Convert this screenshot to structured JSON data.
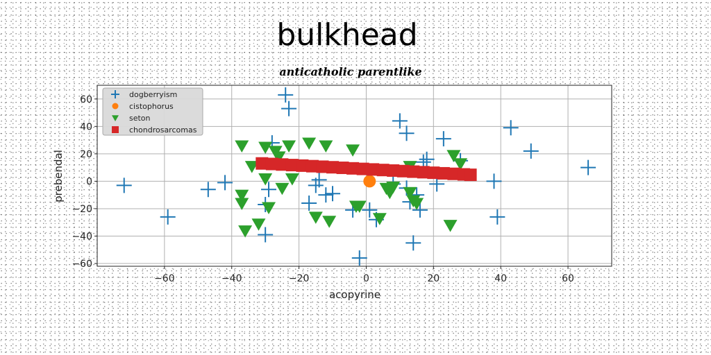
{
  "chart_data": {
    "type": "scatter",
    "title": "bulkhead",
    "subtitle": "anticatholic parentlike",
    "xlabel": "acopyrine",
    "ylabel": "prebendal",
    "xlim": [
      -80,
      73
    ],
    "ylim": [
      -62,
      70
    ],
    "xticks": [
      -60,
      -40,
      -20,
      0,
      20,
      40,
      60
    ],
    "yticks": [
      -60,
      -40,
      -20,
      0,
      20,
      40,
      60
    ],
    "grid": true,
    "legend_position": "top-left",
    "series": [
      {
        "name": "dogberryism",
        "marker": "plus",
        "color": "#1f77b4",
        "points": [
          [
            -72,
            -3
          ],
          [
            -59,
            -26
          ],
          [
            -47,
            -6
          ],
          [
            -42,
            -1
          ],
          [
            -30,
            -17
          ],
          [
            -30,
            -39
          ],
          [
            -29,
            -6
          ],
          [
            -28,
            28
          ],
          [
            -24,
            63
          ],
          [
            -23,
            53
          ],
          [
            -17,
            -16
          ],
          [
            -15,
            -3
          ],
          [
            -14,
            1
          ],
          [
            -12,
            -10
          ],
          [
            -10,
            -9
          ],
          [
            -4,
            -21
          ],
          [
            -2,
            -56
          ],
          [
            1,
            -21
          ],
          [
            3,
            -28
          ],
          [
            8,
            -2
          ],
          [
            10,
            44
          ],
          [
            12,
            35
          ],
          [
            12,
            -5
          ],
          [
            13,
            -15
          ],
          [
            14,
            -45
          ],
          [
            15,
            -10
          ],
          [
            16,
            -21
          ],
          [
            17,
            14
          ],
          [
            18,
            16
          ],
          [
            21,
            -2
          ],
          [
            23,
            31
          ],
          [
            28,
            15
          ],
          [
            38,
            0
          ],
          [
            39,
            -26
          ],
          [
            43,
            39
          ],
          [
            49,
            22
          ],
          [
            66,
            10
          ]
        ]
      },
      {
        "name": "cistophorus",
        "marker": "circle",
        "color": "#ff7f0e",
        "points": [
          [
            1,
            0
          ]
        ]
      },
      {
        "name": "seton",
        "marker": "triangle-down",
        "color": "#2ca02c",
        "points": [
          [
            -37,
            26
          ],
          [
            -37,
            -10
          ],
          [
            -37,
            -16
          ],
          [
            -36,
            -36
          ],
          [
            -34,
            11
          ],
          [
            -32,
            -31
          ],
          [
            -30,
            25
          ],
          [
            -30,
            2
          ],
          [
            -29,
            -19
          ],
          [
            -27,
            22
          ],
          [
            -26,
            18
          ],
          [
            -25,
            -5
          ],
          [
            -23,
            26
          ],
          [
            -22,
            2
          ],
          [
            -17,
            28
          ],
          [
            -15,
            -26
          ],
          [
            -12,
            26
          ],
          [
            -11,
            -29
          ],
          [
            -4,
            23
          ],
          [
            -3,
            -18
          ],
          [
            -2,
            -18
          ],
          [
            4,
            -27
          ],
          [
            6,
            -5
          ],
          [
            7,
            -8
          ],
          [
            8,
            -4
          ],
          [
            13,
            11
          ],
          [
            13,
            -8
          ],
          [
            14,
            -14
          ],
          [
            15,
            -16
          ],
          [
            25,
            -32
          ],
          [
            26,
            19
          ],
          [
            28,
            13
          ]
        ]
      },
      {
        "name": "chondrosarcomas",
        "marker": "square",
        "color": "#d62728",
        "points": [
          [
            -31,
            13
          ],
          [
            -28,
            12.6
          ],
          [
            -25,
            12.2
          ],
          [
            -22,
            11.8
          ],
          [
            -19,
            11.4
          ],
          [
            -16,
            11
          ],
          [
            -13,
            10.6
          ],
          [
            -10,
            10.2
          ],
          [
            -7,
            9.8
          ],
          [
            -4,
            9.4
          ],
          [
            -1,
            9
          ],
          [
            2,
            8.6
          ],
          [
            5,
            8.2
          ],
          [
            8,
            7.8
          ],
          [
            11,
            7.4
          ],
          [
            14,
            7
          ],
          [
            17,
            6.6
          ],
          [
            20,
            6.2
          ],
          [
            23,
            5.8
          ],
          [
            26,
            5.4
          ],
          [
            29,
            5
          ],
          [
            31,
            4.7
          ]
        ]
      }
    ]
  }
}
